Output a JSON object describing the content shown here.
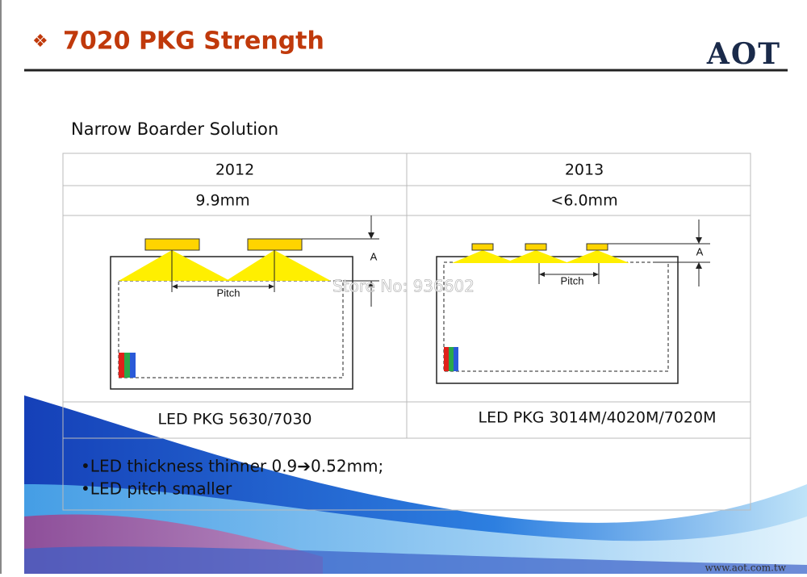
{
  "header": {
    "bullet": "❖",
    "title": "7020 PKG Strength",
    "logo": "AOT"
  },
  "subtitle": "Narrow Boarder Solution",
  "table": {
    "columns": [
      "2012",
      "2013"
    ],
    "border_width": [
      "9.9mm",
      "<6.0mm"
    ],
    "diagrams": [
      {
        "pitch_label": "Pitch",
        "gap_label": "A"
      },
      {
        "pitch_label": "Pitch",
        "gap_label": "A"
      }
    ],
    "packages": [
      "LED PKG 5630/7030",
      "LED PKG 3014M/4020M/7020M"
    ],
    "notes": [
      "•LED thickness thinner 0.9➔0.52mm;",
      "•LED pitch smaller"
    ]
  },
  "watermark": "Store No: 936602",
  "footer": "www.aot.com.tw"
}
